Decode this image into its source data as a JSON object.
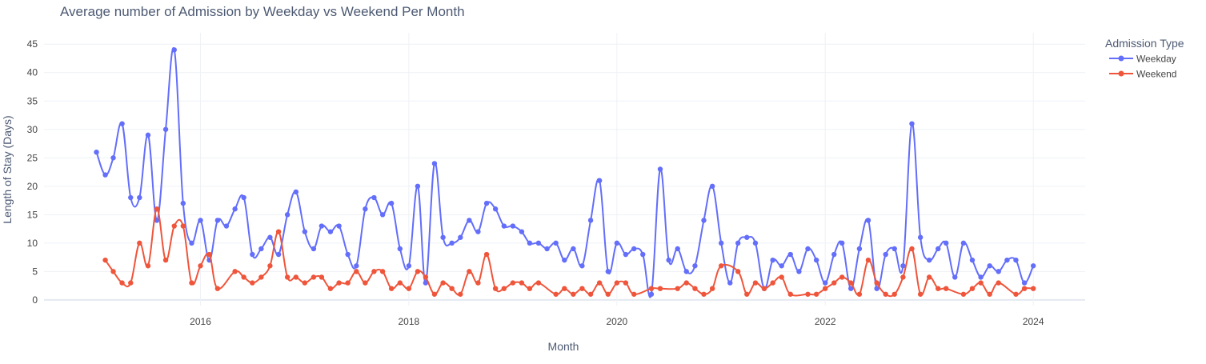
{
  "colors": {
    "weekday": "#636efa",
    "weekend": "#ef553b",
    "grid": "#eef1f6",
    "axis_text": "#444444",
    "title_text": "#4d5a73"
  },
  "chart_data": {
    "type": "line",
    "title": "Average number of Admission by Weekday vs Weekend Per Month",
    "xlabel": "Month",
    "ylabel": "Length of Stay (Days)",
    "x_ticks": [
      "2016",
      "2018",
      "2020",
      "2022",
      "2024"
    ],
    "y_ticks": [
      "0",
      "5",
      "10",
      "15",
      "20",
      "25",
      "30",
      "35",
      "40",
      "45"
    ],
    "xlim": [
      "2014-07-01",
      "2024-07-01"
    ],
    "ylim": [
      -1,
      47
    ],
    "grid": true,
    "legend": {
      "title": "Admission Type",
      "placement": "top-right"
    },
    "series": [
      {
        "name": "Weekday",
        "color": "#636efa",
        "x": [
          "2015-01",
          "2015-02",
          "2015-03",
          "2015-04",
          "2015-05",
          "2015-06",
          "2015-07",
          "2015-08",
          "2015-09",
          "2015-10",
          "2015-11",
          "2015-12",
          "2016-01",
          "2016-02",
          "2016-03",
          "2016-04",
          "2016-05",
          "2016-06",
          "2016-07",
          "2016-08",
          "2016-09",
          "2016-10",
          "2016-11",
          "2016-12",
          "2017-01",
          "2017-02",
          "2017-03",
          "2017-04",
          "2017-05",
          "2017-06",
          "2017-07",
          "2017-08",
          "2017-09",
          "2017-10",
          "2017-11",
          "2017-12",
          "2018-01",
          "2018-02",
          "2018-03",
          "2018-04",
          "2018-05",
          "2018-06",
          "2018-07",
          "2018-08",
          "2018-09",
          "2018-10",
          "2018-11",
          "2018-12",
          "2019-01",
          "2019-02",
          "2019-03",
          "2019-04",
          "2019-05",
          "2019-06",
          "2019-07",
          "2019-08",
          "2019-09",
          "2019-10",
          "2019-11",
          "2019-12",
          "2020-01",
          "2020-02",
          "2020-03",
          "2020-04",
          "2020-05",
          "2020-06",
          "2020-07",
          "2020-08",
          "2020-09",
          "2020-10",
          "2020-11",
          "2020-12",
          "2021-01",
          "2021-02",
          "2021-03",
          "2021-04",
          "2021-05",
          "2021-06",
          "2021-07",
          "2021-08",
          "2021-09",
          "2021-10",
          "2021-11",
          "2021-12",
          "2022-01",
          "2022-02",
          "2022-03",
          "2022-04",
          "2022-05",
          "2022-06",
          "2022-07",
          "2022-08",
          "2022-09",
          "2022-10",
          "2022-11",
          "2022-12",
          "2023-01",
          "2023-02",
          "2023-03",
          "2023-04",
          "2023-05",
          "2023-06",
          "2023-07",
          "2023-08",
          "2023-09",
          "2023-10",
          "2023-11",
          "2023-12",
          "2024-01"
        ],
        "y": [
          26,
          22,
          25,
          31,
          18,
          18,
          29,
          14,
          30,
          44,
          17,
          10,
          14,
          7,
          14,
          13,
          16,
          18,
          8,
          9,
          11,
          8,
          15,
          19,
          12,
          9,
          13,
          12,
          13,
          8,
          6,
          16,
          18,
          15,
          17,
          9,
          6,
          20,
          3,
          24,
          11,
          10,
          11,
          14,
          12,
          17,
          16,
          13,
          13,
          12,
          10,
          10,
          9,
          10,
          7,
          9,
          6,
          14,
          21,
          5,
          10,
          8,
          9,
          8,
          1,
          23,
          7,
          9,
          5,
          6,
          14,
          20,
          10,
          3,
          10,
          11,
          10,
          2,
          7,
          6,
          8,
          5,
          9,
          7,
          3,
          8,
          10,
          2,
          9,
          14,
          2,
          8,
          9,
          6,
          31,
          11,
          7,
          9,
          10,
          4,
          10,
          7,
          4,
          6,
          5,
          7,
          7,
          3,
          6
        ]
      },
      {
        "name": "Weekend",
        "color": "#ef553b",
        "x": [
          "2015-02",
          "2015-03",
          "2015-04",
          "2015-05",
          "2015-06",
          "2015-07",
          "2015-08",
          "2015-09",
          "2015-10",
          "2015-11",
          "2015-12",
          "2016-01",
          "2016-02",
          "2016-03",
          "2016-05",
          "2016-06",
          "2016-07",
          "2016-08",
          "2016-09",
          "2016-10",
          "2016-11",
          "2016-12",
          "2017-01",
          "2017-02",
          "2017-03",
          "2017-04",
          "2017-05",
          "2017-06",
          "2017-07",
          "2017-08",
          "2017-09",
          "2017-10",
          "2017-11",
          "2017-12",
          "2018-01",
          "2018-02",
          "2018-03",
          "2018-04",
          "2018-05",
          "2018-06",
          "2018-07",
          "2018-08",
          "2018-09",
          "2018-10",
          "2018-11",
          "2018-12",
          "2019-01",
          "2019-02",
          "2019-03",
          "2019-04",
          "2019-06",
          "2019-07",
          "2019-08",
          "2019-09",
          "2019-10",
          "2019-11",
          "2019-12",
          "2020-01",
          "2020-02",
          "2020-03",
          "2020-05",
          "2020-06",
          "2020-08",
          "2020-09",
          "2020-10",
          "2020-11",
          "2020-12",
          "2021-01",
          "2021-03",
          "2021-04",
          "2021-05",
          "2021-06",
          "2021-07",
          "2021-08",
          "2021-09",
          "2021-11",
          "2021-12",
          "2022-01",
          "2022-02",
          "2022-03",
          "2022-04",
          "2022-05",
          "2022-06",
          "2022-07",
          "2022-08",
          "2022-09",
          "2022-10",
          "2022-11",
          "2022-12",
          "2023-01",
          "2023-02",
          "2023-03",
          "2023-05",
          "2023-06",
          "2023-07",
          "2023-08",
          "2023-09",
          "2023-11",
          "2023-12",
          "2024-01"
        ],
        "y": [
          7,
          5,
          3,
          3,
          10,
          6,
          16,
          7,
          13,
          13,
          3,
          6,
          8,
          2,
          5,
          4,
          3,
          4,
          6,
          12,
          4,
          4,
          3,
          4,
          4,
          2,
          3,
          3,
          5,
          3,
          5,
          5,
          2,
          3,
          2,
          5,
          4,
          1,
          3,
          2,
          1,
          5,
          3,
          8,
          2,
          2,
          3,
          3,
          2,
          3,
          1,
          2,
          1,
          2,
          1,
          3,
          1,
          3,
          3,
          1,
          2,
          2,
          2,
          3,
          2,
          1,
          2,
          6,
          5,
          1,
          3,
          2,
          3,
          4,
          1,
          1,
          1,
          2,
          3,
          4,
          3,
          1,
          7,
          3,
          1,
          1,
          4,
          9,
          1,
          4,
          2,
          2,
          1,
          2,
          3,
          1,
          3,
          1,
          2,
          2
        ]
      }
    ]
  }
}
